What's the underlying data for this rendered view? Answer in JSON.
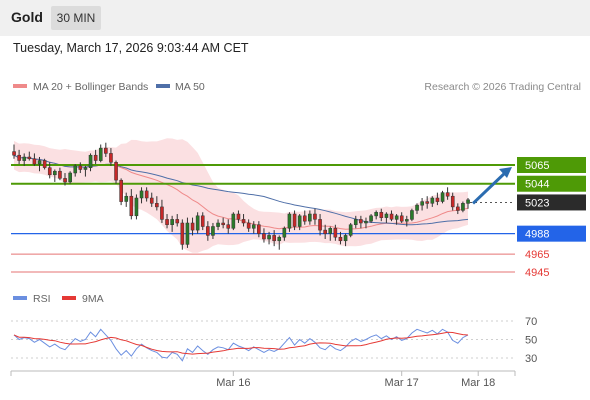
{
  "header": {
    "title": "Gold",
    "timeframe": "30 MIN"
  },
  "datetime": "Tuesday, March 17, 2026 9:03:44 AM CET",
  "legend": {
    "ma20_label": "MA 20 + Bollinger Bands",
    "ma50_label": "MA 50",
    "credit": "Research © 2026 Trading Central"
  },
  "rsi_legend": {
    "rsi_label": "RSI",
    "ma_label": "9MA"
  },
  "colors": {
    "bull": "#2a7a2a",
    "bear": "#c62828",
    "ma20": "#ef8a8a",
    "ma50": "#4f6fa8",
    "band": "#fbe0e2",
    "resistance": "#4e9a06",
    "current": "#2b2b2b",
    "pivot": "#2364e8",
    "support": "#e57373",
    "rsi": "#6b8fe0",
    "rsi_ma": "#e53935",
    "arrow": "#2b6cb0"
  },
  "chart_data": {
    "type": "candlestick",
    "price_levels": [
      {
        "label": "5065",
        "value": 5065,
        "role": "resistance"
      },
      {
        "label": "5044",
        "value": 5044,
        "role": "resistance"
      },
      {
        "label": "5023",
        "value": 5023,
        "role": "current"
      },
      {
        "label": "4988",
        "value": 4988,
        "role": "pivot"
      },
      {
        "label": "4965",
        "value": 4965,
        "role": "support"
      },
      {
        "label": "4945",
        "value": 4945,
        "role": "support"
      }
    ],
    "ohlc": [
      [
        5080,
        5088,
        5072,
        5076
      ],
      [
        5076,
        5082,
        5066,
        5070
      ],
      [
        5070,
        5078,
        5064,
        5074
      ],
      [
        5074,
        5080,
        5070,
        5072
      ],
      [
        5072,
        5078,
        5064,
        5066
      ],
      [
        5066,
        5074,
        5058,
        5070
      ],
      [
        5070,
        5072,
        5060,
        5062
      ],
      [
        5062,
        5068,
        5050,
        5054
      ],
      [
        5054,
        5060,
        5046,
        5058
      ],
      [
        5058,
        5062,
        5048,
        5050
      ],
      [
        5050,
        5056,
        5042,
        5046
      ],
      [
        5046,
        5058,
        5044,
        5056
      ],
      [
        5056,
        5066,
        5052,
        5064
      ],
      [
        5064,
        5068,
        5056,
        5060
      ],
      [
        5060,
        5064,
        5052,
        5062
      ],
      [
        5062,
        5078,
        5058,
        5076
      ],
      [
        5076,
        5082,
        5066,
        5070
      ],
      [
        5070,
        5088,
        5068,
        5084
      ],
      [
        5084,
        5090,
        5074,
        5078
      ],
      [
        5078,
        5084,
        5064,
        5068
      ],
      [
        5068,
        5070,
        5044,
        5048
      ],
      [
        5048,
        5050,
        5020,
        5024
      ],
      [
        5024,
        5034,
        5018,
        5030
      ],
      [
        5030,
        5038,
        5004,
        5008
      ],
      [
        5008,
        5032,
        5004,
        5028
      ],
      [
        5028,
        5040,
        5022,
        5036
      ],
      [
        5036,
        5040,
        5024,
        5028
      ],
      [
        5028,
        5034,
        5018,
        5022
      ],
      [
        5022,
        5030,
        5014,
        5018
      ],
      [
        5018,
        5026,
        5000,
        5004
      ],
      [
        5004,
        5010,
        4994,
        4998
      ],
      [
        4998,
        5008,
        4990,
        5004
      ],
      [
        5004,
        5010,
        4996,
        5000
      ],
      [
        5000,
        5004,
        4970,
        4976
      ],
      [
        4976,
        5006,
        4972,
        5000
      ],
      [
        5000,
        5006,
        4986,
        4992
      ],
      [
        4992,
        5012,
        4988,
        5008
      ],
      [
        5008,
        5012,
        4992,
        4996
      ],
      [
        4996,
        5002,
        4980,
        4986
      ],
      [
        4986,
        5000,
        4982,
        4996
      ],
      [
        4996,
        5004,
        4992,
        5000
      ],
      [
        5000,
        5006,
        4994,
        4998
      ],
      [
        4998,
        5004,
        4988,
        4994
      ],
      [
        4994,
        5012,
        4992,
        5010
      ],
      [
        5010,
        5014,
        5000,
        5004
      ],
      [
        5004,
        5010,
        4996,
        5000
      ],
      [
        5000,
        5004,
        4990,
        4994
      ],
      [
        4994,
        5002,
        4988,
        4998
      ],
      [
        4998,
        5002,
        4984,
        4988
      ],
      [
        4988,
        4994,
        4978,
        4982
      ],
      [
        4982,
        4990,
        4976,
        4986
      ],
      [
        4986,
        4992,
        4974,
        4980
      ],
      [
        4980,
        4986,
        4970,
        4984
      ],
      [
        4984,
        4996,
        4980,
        4994
      ],
      [
        4994,
        5012,
        4990,
        5010
      ],
      [
        5010,
        5014,
        4992,
        4996
      ],
      [
        4996,
        5010,
        4992,
        5008
      ],
      [
        5008,
        5014,
        4998,
        5002
      ],
      [
        5002,
        5014,
        4998,
        5010
      ],
      [
        5010,
        5016,
        4998,
        5004
      ],
      [
        5004,
        5010,
        4986,
        4992
      ],
      [
        4992,
        4998,
        4982,
        4988
      ],
      [
        4988,
        4996,
        4980,
        4994
      ],
      [
        4994,
        4998,
        4980,
        4984
      ],
      [
        4984,
        4990,
        4976,
        4980
      ],
      [
        4980,
        4988,
        4974,
        4986
      ],
      [
        4986,
        5000,
        4984,
        4998
      ],
      [
        4998,
        5008,
        4994,
        5004
      ],
      [
        5004,
        5008,
        4994,
        5000
      ],
      [
        5000,
        5006,
        4994,
        5002
      ],
      [
        5002,
        5010,
        5000,
        5008
      ],
      [
        5008,
        5014,
        5004,
        5012
      ],
      [
        5012,
        5016,
        5002,
        5006
      ],
      [
        5006,
        5012,
        5000,
        5010
      ],
      [
        5010,
        5014,
        5002,
        5004
      ],
      [
        5004,
        5010,
        4998,
        5008
      ],
      [
        5008,
        5012,
        5000,
        5002
      ],
      [
        5002,
        5008,
        4996,
        5004
      ],
      [
        5004,
        5016,
        5002,
        5014
      ],
      [
        5014,
        5022,
        5010,
        5020
      ],
      [
        5020,
        5028,
        5014,
        5024
      ],
      [
        5024,
        5030,
        5016,
        5022
      ],
      [
        5022,
        5030,
        5018,
        5028
      ],
      [
        5028,
        5034,
        5020,
        5024
      ],
      [
        5024,
        5036,
        5022,
        5034
      ],
      [
        5034,
        5040,
        5026,
        5030
      ],
      [
        5030,
        5034,
        5014,
        5018
      ],
      [
        5018,
        5022,
        5010,
        5014
      ],
      [
        5014,
        5024,
        5012,
        5022
      ],
      [
        5022,
        5028,
        5016,
        5026
      ]
    ],
    "rsi_axis": {
      "ticks": [
        "70",
        "50",
        "30"
      ],
      "ylim": [
        20,
        80
      ]
    },
    "rsi": [
      55,
      50,
      52,
      51,
      47,
      50,
      46,
      42,
      45,
      41,
      39,
      45,
      51,
      48,
      50,
      58,
      53,
      61,
      55,
      49,
      40,
      33,
      38,
      32,
      40,
      45,
      41,
      38,
      36,
      31,
      30,
      36,
      34,
      27,
      40,
      36,
      43,
      38,
      34,
      39,
      42,
      41,
      39,
      46,
      43,
      41,
      38,
      42,
      39,
      36,
      39,
      37,
      40,
      46,
      52,
      44,
      50,
      46,
      51,
      47,
      41,
      39,
      44,
      40,
      38,
      42,
      48,
      51,
      48,
      50,
      53,
      55,
      51,
      54,
      50,
      53,
      49,
      51,
      57,
      61,
      59,
      57,
      60,
      56,
      61,
      58,
      49,
      46,
      52,
      55
    ],
    "x_axis": {
      "labels": [
        "Mar 16",
        "Mar 17",
        "Mar 18"
      ],
      "positions": [
        43,
        76,
        91
      ]
    },
    "forecast": {
      "from": 5023,
      "to": 5065
    }
  }
}
